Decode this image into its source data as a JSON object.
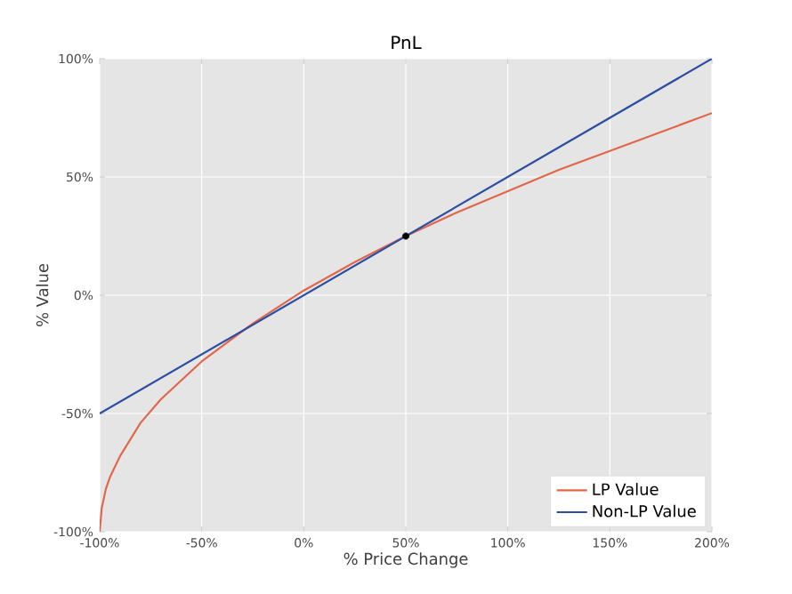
{
  "chart_data": {
    "type": "line",
    "title": "PnL",
    "xlabel": "% Price Change",
    "ylabel": "% Value",
    "xlim": [
      -100,
      200
    ],
    "ylim": [
      -100,
      100
    ],
    "xticks": [
      {
        "value": -100,
        "label": "-100%"
      },
      {
        "value": -50,
        "label": "-50%"
      },
      {
        "value": 0,
        "label": "0%"
      },
      {
        "value": 50,
        "label": "50%"
      },
      {
        "value": 100,
        "label": "100%"
      },
      {
        "value": 150,
        "label": "150%"
      },
      {
        "value": 200,
        "label": "200%"
      }
    ],
    "yticks": [
      {
        "value": -100,
        "label": "-100%"
      },
      {
        "value": -50,
        "label": "-50%"
      },
      {
        "value": 0,
        "label": "0%"
      },
      {
        "value": 50,
        "label": "50%"
      },
      {
        "value": 100,
        "label": "100%"
      }
    ],
    "grid": true,
    "legend": "bottom right",
    "line_style": "solid",
    "series": [
      {
        "name": "LP Value",
        "color": "#e2674a",
        "x": [
          -100,
          -99,
          -97,
          -95,
          -90,
          -80,
          -70,
          -60,
          -50,
          -25,
          0,
          25,
          50,
          75,
          100,
          125,
          150,
          175,
          200
        ],
        "values": [
          -100,
          -90,
          -82,
          -77,
          -68,
          -54,
          -44,
          -36,
          -28,
          -12,
          2,
          14,
          25,
          35,
          44,
          53,
          61,
          69,
          77
        ]
      },
      {
        "name": "Non-LP Value",
        "color": "#2b4ea2",
        "x": [
          -100,
          200
        ],
        "values": [
          -50,
          100
        ]
      },
      {
        "type": "scatter",
        "marker": "circle",
        "color": "#000000",
        "x": [
          50
        ],
        "values": [
          25
        ]
      }
    ]
  }
}
